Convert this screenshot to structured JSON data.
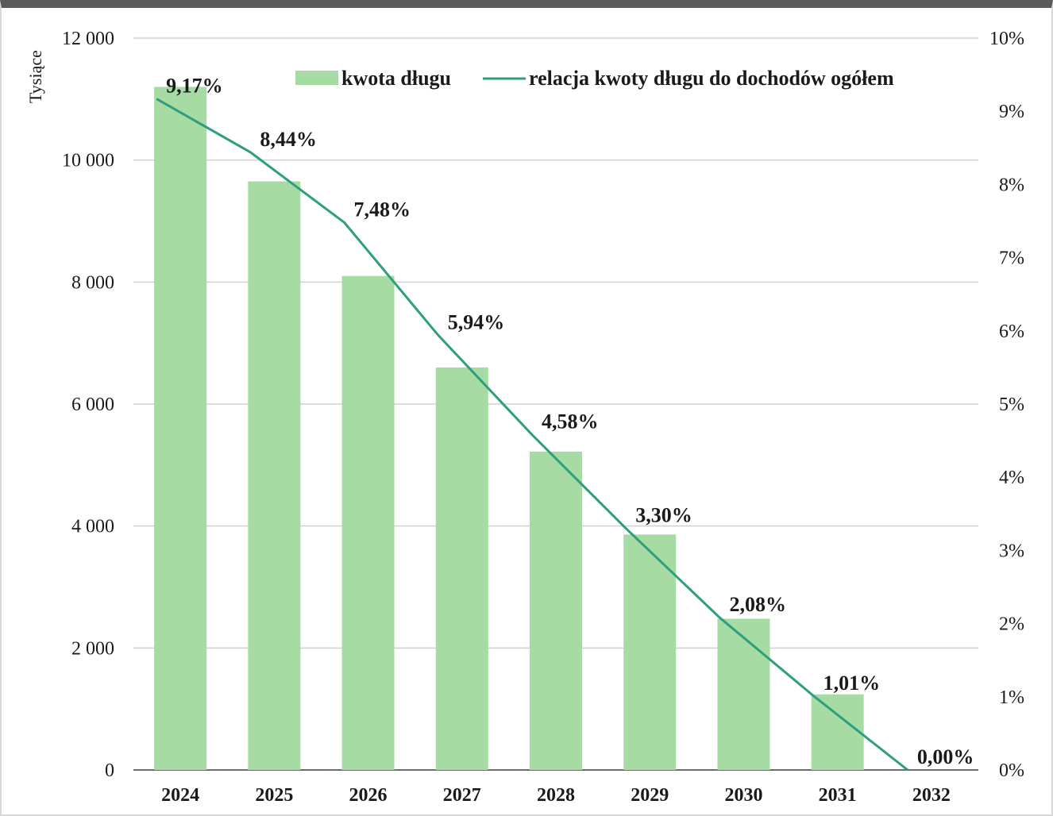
{
  "chart_data": {
    "type": "bar",
    "categories": [
      "2024",
      "2025",
      "2026",
      "2027",
      "2028",
      "2029",
      "2030",
      "2031",
      "2032"
    ],
    "series": [
      {
        "name": "kwota długu",
        "type": "bar",
        "axis": "left",
        "values": [
          11200,
          9650,
          8100,
          6600,
          5220,
          3860,
          2480,
          1240,
          0
        ]
      },
      {
        "name": "relacja kwoty długu do dochodów ogółem",
        "type": "line",
        "axis": "right",
        "values": [
          9.17,
          8.44,
          7.48,
          5.94,
          4.58,
          3.3,
          2.08,
          1.01,
          0.0
        ],
        "data_labels": [
          "9,17%",
          "8,44%",
          "7,48%",
          "5,94%",
          "4,58%",
          "3,30%",
          "2,08%",
          "1,01%",
          "0,00%"
        ]
      }
    ],
    "left_axis": {
      "unit_label": "Tysiące",
      "ylim": [
        0,
        12000
      ],
      "ticks": [
        0,
        2000,
        4000,
        6000,
        8000,
        10000,
        12000
      ],
      "tick_labels": [
        "0",
        "2 000",
        "4 000",
        "6 000",
        "8 000",
        "10 000",
        "12 000"
      ]
    },
    "right_axis": {
      "ylim": [
        0,
        10
      ],
      "ticks": [
        0,
        1,
        2,
        3,
        4,
        5,
        6,
        7,
        8,
        9,
        10
      ],
      "tick_labels": [
        "0%",
        "1%",
        "2%",
        "3%",
        "4%",
        "5%",
        "6%",
        "7%",
        "8%",
        "9%",
        "10%"
      ]
    },
    "legend": {
      "placement": "top"
    },
    "grid": true,
    "colors": {
      "bar": "#a6dba4",
      "line": "#2f9e7e",
      "grid": "#d0d0d0"
    }
  }
}
